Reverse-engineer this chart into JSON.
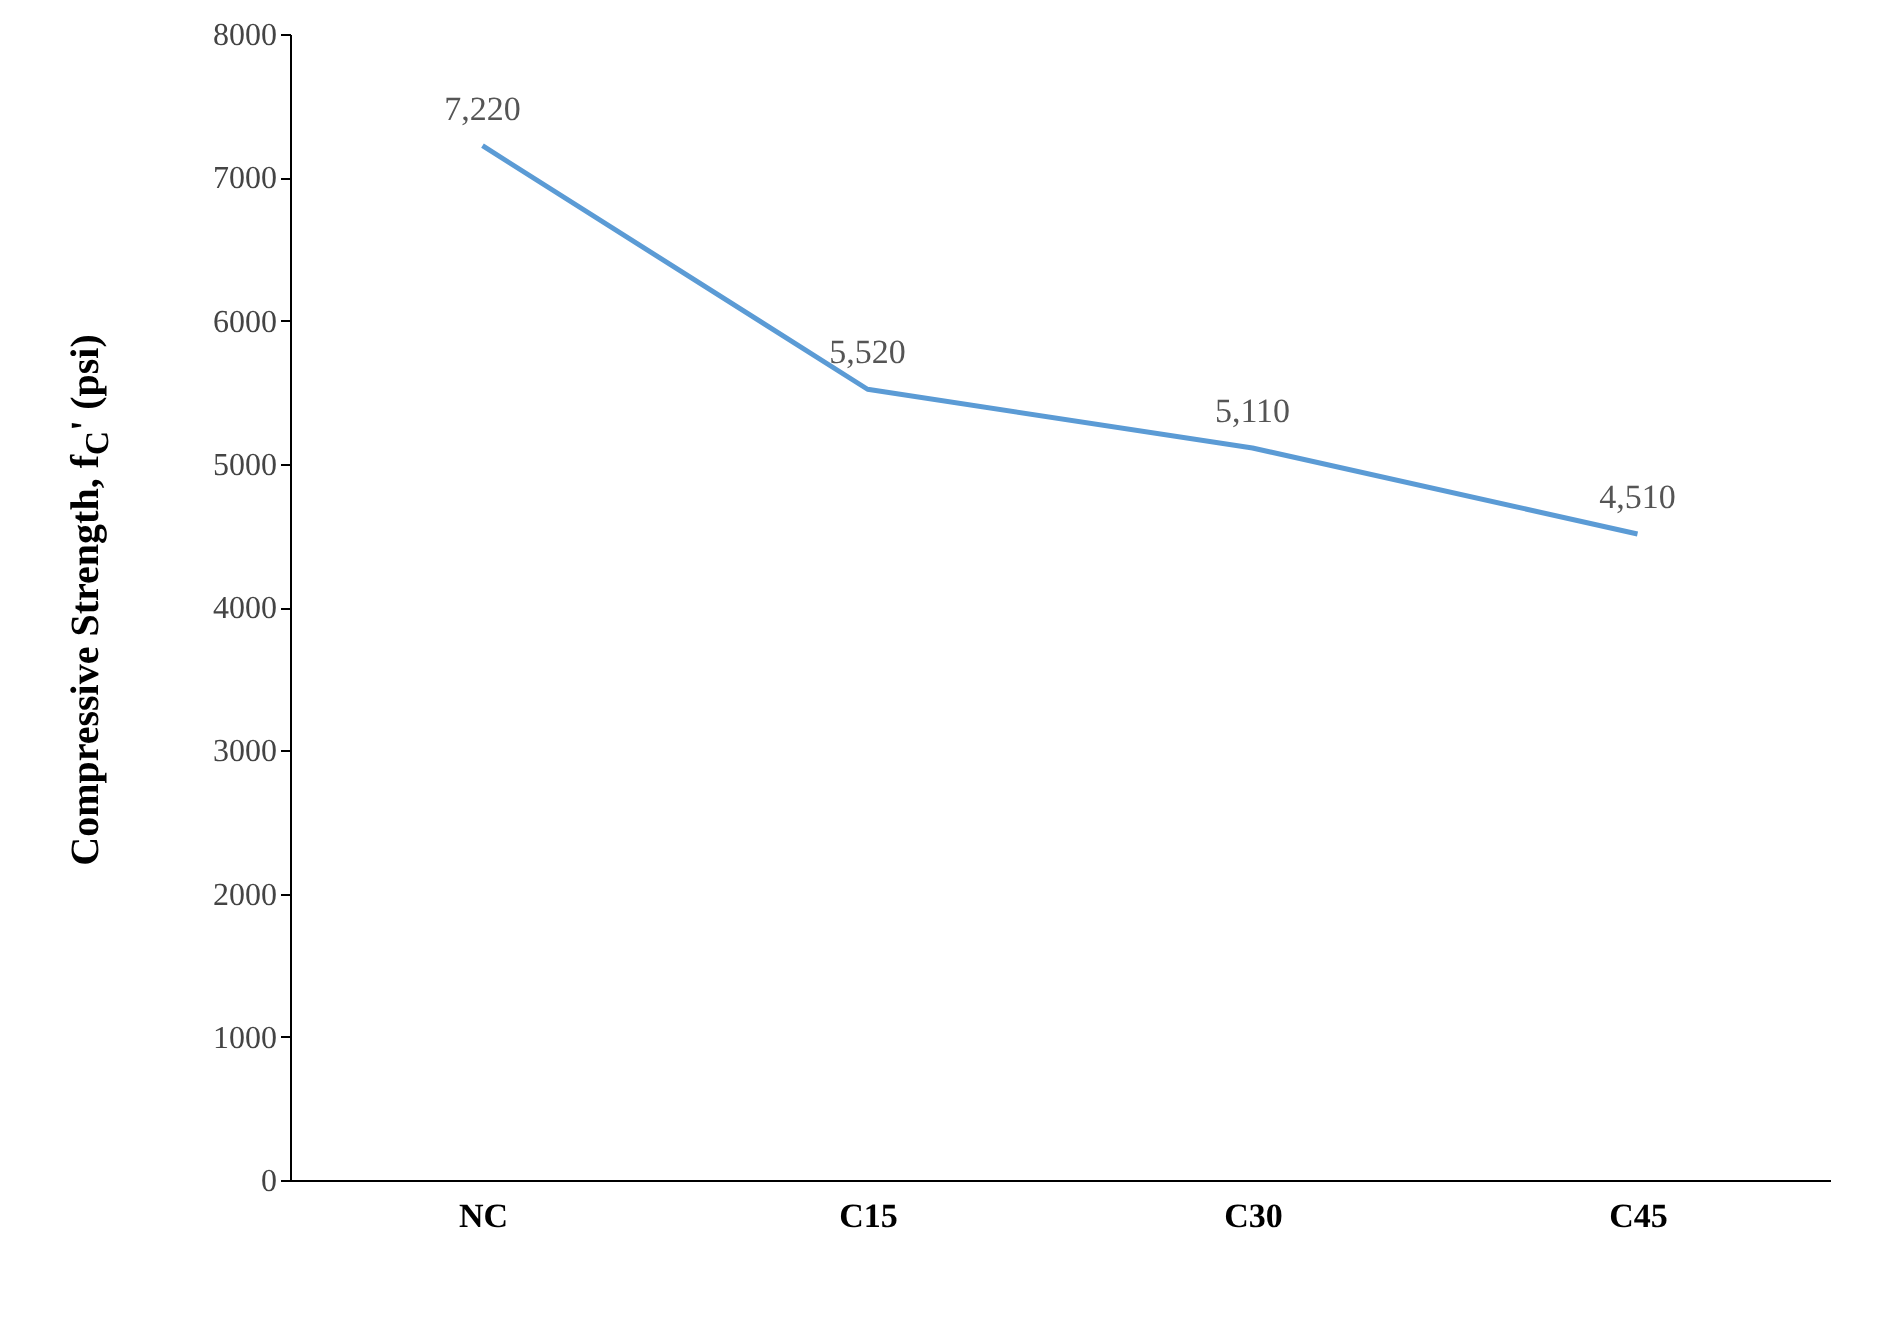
{
  "chart_data": {
    "type": "line",
    "ylabel": "Compressive Strength, f$_{C}$' (psi)",
    "categories": [
      "NC",
      "C15",
      "C30",
      "C45"
    ],
    "series": [
      {
        "color": "#5b9bd5",
        "values": [
          7220,
          5520,
          5110,
          4510
        ],
        "value_labels": [
          "7,220",
          "5,520",
          "5,110",
          "4,510"
        ]
      }
    ],
    "ylim": [
      0,
      8000
    ],
    "yticks": [
      0,
      1000,
      2000,
      3000,
      4000,
      5000,
      6000,
      7000,
      8000
    ],
    "grid": false,
    "marker": "none",
    "line_style": "solid"
  }
}
